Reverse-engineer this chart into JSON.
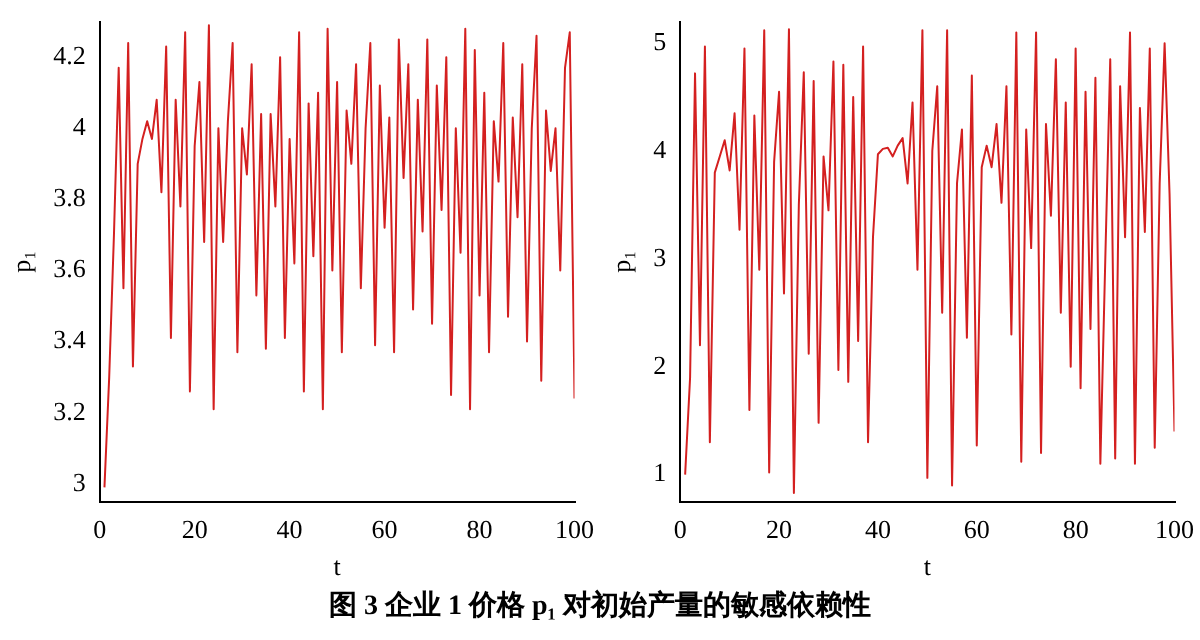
{
  "chart_data": [
    {
      "type": "line",
      "xlabel": "t",
      "ylabel": "p₁",
      "xlim": [
        0,
        100
      ],
      "xticks": [
        0,
        20,
        40,
        60,
        80,
        100
      ],
      "ylim": [
        2.95,
        4.3
      ],
      "yticks": [
        3,
        3.2,
        3.4,
        3.6,
        3.8,
        4,
        4.2
      ],
      "grid": false,
      "legend": false,
      "marker": "none",
      "line_style": "solid",
      "annotations": [
        "图 3  企业 1 价格 p₁ 对初始产量的敏感依赖性"
      ],
      "series": [
        {
          "color": "#d42020",
          "x": [
            1,
            2,
            3,
            4,
            5,
            6,
            7,
            8,
            9,
            10,
            11,
            12,
            13,
            14,
            15,
            16,
            17,
            18,
            19,
            20,
            21,
            22,
            23,
            24,
            25,
            26,
            27,
            28,
            29,
            30,
            31,
            32,
            33,
            34,
            35,
            36,
            37,
            38,
            39,
            40,
            41,
            42,
            43,
            44,
            45,
            46,
            47,
            48,
            49,
            50,
            51,
            52,
            53,
            54,
            55,
            56,
            57,
            58,
            59,
            60,
            61,
            62,
            63,
            64,
            65,
            66,
            67,
            68,
            69,
            70,
            71,
            72,
            73,
            74,
            75,
            76,
            77,
            78,
            79,
            80,
            81,
            82,
            83,
            84,
            85,
            86,
            87,
            88,
            89,
            90,
            91,
            92,
            93,
            94,
            95,
            96,
            97,
            98,
            99,
            100
          ],
          "values": [
            2.99,
            3.3,
            3.7,
            4.17,
            3.55,
            4.24,
            3.33,
            3.9,
            3.97,
            4.02,
            3.97,
            4.08,
            3.82,
            4.23,
            3.41,
            4.08,
            3.78,
            4.27,
            3.26,
            3.95,
            4.13,
            3.68,
            4.29,
            3.21,
            4.0,
            3.68,
            4.02,
            4.24,
            3.37,
            4.0,
            3.87,
            4.18,
            3.53,
            4.04,
            3.38,
            4.04,
            3.78,
            4.2,
            3.41,
            3.97,
            3.62,
            4.27,
            3.26,
            4.07,
            3.64,
            4.1,
            3.21,
            4.28,
            3.6,
            4.13,
            3.37,
            4.05,
            3.9,
            4.18,
            3.55,
            4.0,
            4.24,
            3.39,
            4.12,
            3.72,
            4.03,
            3.37,
            4.25,
            3.86,
            4.18,
            3.49,
            4.08,
            3.71,
            4.25,
            3.45,
            4.12,
            3.77,
            4.2,
            3.25,
            4.0,
            3.65,
            4.28,
            3.21,
            4.22,
            3.53,
            4.1,
            3.37,
            4.02,
            3.85,
            4.24,
            3.47,
            4.03,
            3.75,
            4.18,
            3.4,
            4.0,
            4.26,
            3.29,
            4.05,
            3.88,
            4.0,
            3.6,
            4.17,
            4.27,
            3.24
          ]
        }
      ]
    },
    {
      "type": "line",
      "xlabel": "t",
      "ylabel": "p₁",
      "xlim": [
        0,
        100
      ],
      "xticks": [
        0,
        20,
        40,
        60,
        80,
        100
      ],
      "ylim": [
        0.75,
        5.2
      ],
      "yticks": [
        1,
        2,
        3,
        4,
        5
      ],
      "grid": false,
      "legend": false,
      "marker": "none",
      "line_style": "solid",
      "series": [
        {
          "color": "#d42020",
          "x": [
            1,
            2,
            3,
            4,
            5,
            6,
            7,
            8,
            9,
            10,
            11,
            12,
            13,
            14,
            15,
            16,
            17,
            18,
            19,
            20,
            21,
            22,
            23,
            24,
            25,
            26,
            27,
            28,
            29,
            30,
            31,
            32,
            33,
            34,
            35,
            36,
            37,
            38,
            39,
            40,
            41,
            42,
            43,
            44,
            45,
            46,
            47,
            48,
            49,
            50,
            51,
            52,
            53,
            54,
            55,
            56,
            57,
            58,
            59,
            60,
            61,
            62,
            63,
            64,
            65,
            66,
            67,
            68,
            69,
            70,
            71,
            72,
            73,
            74,
            75,
            76,
            77,
            78,
            79,
            80,
            81,
            82,
            83,
            84,
            85,
            86,
            87,
            88,
            89,
            90,
            91,
            92,
            93,
            94,
            95,
            96,
            97,
            98,
            99,
            100
          ],
          "values": [
            1.0,
            1.9,
            4.72,
            2.2,
            4.97,
            1.3,
            3.8,
            3.95,
            4.1,
            3.82,
            4.35,
            3.27,
            4.95,
            1.6,
            4.33,
            2.9,
            5.12,
            1.02,
            3.9,
            4.55,
            2.68,
            5.13,
            0.83,
            3.5,
            4.73,
            2.12,
            4.65,
            1.48,
            3.95,
            3.45,
            4.83,
            1.97,
            4.8,
            1.86,
            4.5,
            2.24,
            4.97,
            1.3,
            3.2,
            3.97,
            4.02,
            4.03,
            3.95,
            4.05,
            4.12,
            3.7,
            4.45,
            2.9,
            5.12,
            0.97,
            4.0,
            4.6,
            2.5,
            5.12,
            0.9,
            3.7,
            4.2,
            2.27,
            4.7,
            1.27,
            3.85,
            4.05,
            3.85,
            4.25,
            3.52,
            4.6,
            2.3,
            5.1,
            1.12,
            4.2,
            3.1,
            5.1,
            1.2,
            4.25,
            3.4,
            4.85,
            2.5,
            4.45,
            2.0,
            4.95,
            1.8,
            4.55,
            2.35,
            4.68,
            1.1,
            3.0,
            4.85,
            1.15,
            4.6,
            3.2,
            5.1,
            1.1,
            4.4,
            3.25,
            4.95,
            1.25,
            3.7,
            5.0,
            3.6,
            1.4
          ]
        }
      ]
    }
  ]
}
